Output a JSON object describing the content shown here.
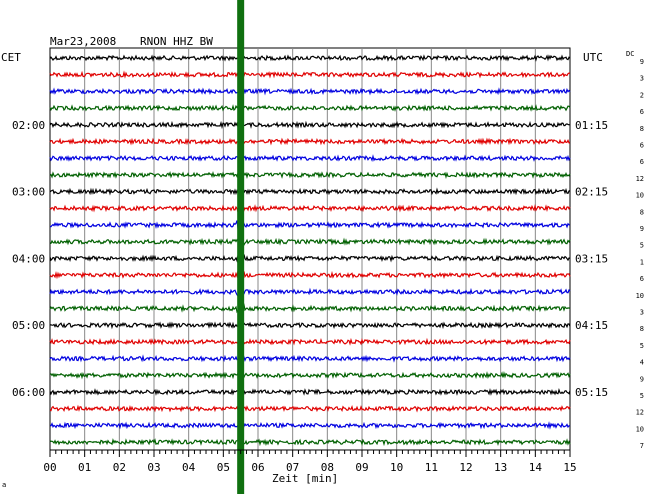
{
  "header": {
    "date": "Mar23,2008",
    "station": "RNON HHZ BW",
    "left_zone": "CET",
    "right_zone": "UTC",
    "dc_label": "DC",
    "corner_mark": "a"
  },
  "chart_data": {
    "type": "line",
    "title": "Mar23,2008   RNON HHZ BW",
    "xlabel": "Zeit [min]",
    "ylabel": "",
    "xlim": [
      0,
      15
    ],
    "x_ticks": [
      "00",
      "01",
      "02",
      "03",
      "04",
      "05",
      "06",
      "07",
      "08",
      "09",
      "10",
      "11",
      "12",
      "13",
      "14",
      "15"
    ],
    "grid": true,
    "trace_colors": [
      "#000000",
      "#e00000",
      "#0000e0",
      "#006000"
    ],
    "left_time_labels": [
      {
        "row": 4,
        "label": "02:00"
      },
      {
        "row": 8,
        "label": "03:00"
      },
      {
        "row": 12,
        "label": "04:00"
      },
      {
        "row": 16,
        "label": "05:00"
      },
      {
        "row": 20,
        "label": "06:00"
      }
    ],
    "right_time_labels": [
      {
        "row": 4,
        "label": "01:15"
      },
      {
        "row": 8,
        "label": "02:15"
      },
      {
        "row": 12,
        "label": "03:15"
      },
      {
        "row": 16,
        "label": "04:15"
      },
      {
        "row": 20,
        "label": "05:15"
      }
    ],
    "dc_offsets": [
      9,
      3,
      2,
      6,
      8,
      6,
      6,
      12,
      10,
      8,
      9,
      5,
      1,
      6,
      10,
      3,
      8,
      5,
      4,
      9,
      5,
      12,
      10,
      7
    ],
    "trace_amplitude_rows": [
      2,
      2,
      2,
      2,
      2,
      2,
      2,
      2,
      2,
      2,
      2,
      2,
      2,
      2,
      2,
      2,
      2,
      2,
      2,
      2,
      2,
      2,
      2,
      2
    ],
    "event_marker": {
      "minute": 5.5,
      "color": "#107010"
    }
  }
}
